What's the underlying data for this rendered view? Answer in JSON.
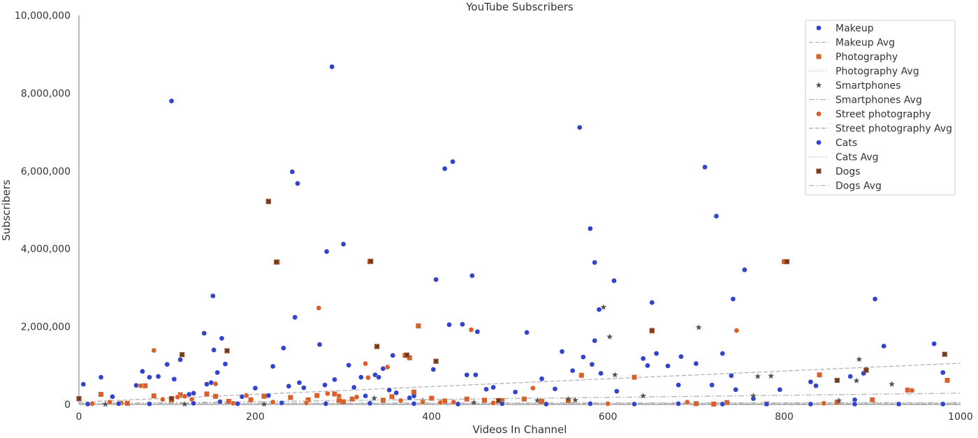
{
  "chart_data": {
    "type": "scatter",
    "title": "YouTube Subscribers",
    "xlabel": "Videos In Channel",
    "ylabel": "Subscribers",
    "xlim": [
      0,
      1000
    ],
    "ylim": [
      0,
      10000000
    ],
    "x_ticks": [
      {
        "value": 0,
        "label": "0"
      },
      {
        "value": 200,
        "label": "200"
      },
      {
        "value": 400,
        "label": "400"
      },
      {
        "value": 600,
        "label": "600"
      },
      {
        "value": 800,
        "label": "800"
      },
      {
        "value": 1000,
        "label": "1000"
      }
    ],
    "y_ticks": [
      {
        "value": 0,
        "label": "0"
      },
      {
        "value": 2000000,
        "label": "2,000,000"
      },
      {
        "value": 4000000,
        "label": "4,000,000"
      },
      {
        "value": 6000000,
        "label": "6,000,000"
      },
      {
        "value": 8000000,
        "label": "8,000,000"
      },
      {
        "value": 10000000,
        "label": "10,000,000"
      }
    ],
    "grid": false,
    "legend_position": "top-right",
    "series": [
      {
        "name": "Makeup",
        "marker": "circle",
        "color": "#3344cc",
        "points": [
          [
            5,
            520000
          ],
          [
            25,
            700000
          ],
          [
            38,
            200000
          ],
          [
            65,
            490000
          ],
          [
            72,
            850000
          ],
          [
            80,
            700000
          ],
          [
            90,
            720000
          ],
          [
            100,
            1030000
          ],
          [
            105,
            7800000
          ],
          [
            108,
            650000
          ],
          [
            115,
            1150000
          ],
          [
            125,
            260000
          ],
          [
            130,
            290000
          ],
          [
            142,
            1830000
          ],
          [
            145,
            520000
          ],
          [
            150,
            560000
          ],
          [
            152,
            2790000
          ],
          [
            153,
            1400000
          ],
          [
            157,
            820000
          ],
          [
            160,
            70000
          ],
          [
            162,
            1700000
          ],
          [
            166,
            1040000
          ],
          [
            185,
            200000
          ],
          [
            200,
            420000
          ],
          [
            215,
            230000
          ],
          [
            220,
            980000
          ],
          [
            232,
            1450000
          ],
          [
            238,
            470000
          ],
          [
            242,
            5980000
          ],
          [
            245,
            2240000
          ],
          [
            248,
            5680000
          ],
          [
            250,
            560000
          ],
          [
            255,
            430000
          ],
          [
            273,
            1540000
          ],
          [
            279,
            500000
          ],
          [
            281,
            3930000
          ],
          [
            287,
            8680000
          ],
          [
            290,
            640000
          ],
          [
            300,
            4120000
          ],
          [
            306,
            1010000
          ],
          [
            312,
            440000
          ],
          [
            320,
            700000
          ],
          [
            325,
            220000
          ],
          [
            336,
            760000
          ],
          [
            340,
            700000
          ],
          [
            345,
            920000
          ],
          [
            352,
            370000
          ],
          [
            356,
            1260000
          ],
          [
            360,
            300000
          ],
          [
            375,
            170000
          ],
          [
            380,
            220000
          ],
          [
            402,
            900000
          ],
          [
            405,
            3210000
          ],
          [
            415,
            6060000
          ],
          [
            420,
            2050000
          ],
          [
            424,
            6240000
          ],
          [
            435,
            2060000
          ],
          [
            440,
            760000
          ],
          [
            446,
            3310000
          ],
          [
            450,
            760000
          ],
          [
            452,
            1870000
          ],
          [
            462,
            390000
          ],
          [
            470,
            440000
          ],
          [
            495,
            320000
          ],
          [
            508,
            1850000
          ],
          [
            525,
            660000
          ],
          [
            540,
            400000
          ],
          [
            548,
            1360000
          ],
          [
            560,
            870000
          ],
          [
            568,
            7120000
          ],
          [
            572,
            1220000
          ],
          [
            580,
            4520000
          ],
          [
            582,
            1030000
          ],
          [
            585,
            3650000
          ],
          [
            585,
            1640000
          ],
          [
            590,
            2440000
          ],
          [
            592,
            800000
          ],
          [
            607,
            3180000
          ],
          [
            610,
            340000
          ],
          [
            640,
            1180000
          ],
          [
            645,
            1000000
          ],
          [
            650,
            2620000
          ],
          [
            655,
            1310000
          ],
          [
            668,
            990000
          ],
          [
            680,
            500000
          ],
          [
            683,
            1230000
          ],
          [
            700,
            1050000
          ],
          [
            710,
            6100000
          ],
          [
            718,
            500000
          ],
          [
            723,
            4840000
          ],
          [
            730,
            1310000
          ],
          [
            740,
            740000
          ],
          [
            742,
            2710000
          ],
          [
            745,
            380000
          ],
          [
            755,
            3460000
          ],
          [
            765,
            150000
          ],
          [
            795,
            380000
          ],
          [
            830,
            580000
          ],
          [
            836,
            480000
          ],
          [
            875,
            720000
          ],
          [
            880,
            120000
          ],
          [
            890,
            800000
          ],
          [
            903,
            2710000
          ],
          [
            913,
            1500000
          ],
          [
            970,
            1560000
          ],
          [
            980,
            820000
          ]
        ]
      },
      {
        "name": "Photography",
        "marker": "square",
        "color": "#d9602a",
        "points": [
          [
            25,
            260000
          ],
          [
            55,
            30000
          ],
          [
            75,
            480000
          ],
          [
            85,
            220000
          ],
          [
            105,
            120000
          ],
          [
            115,
            250000
          ],
          [
            145,
            270000
          ],
          [
            155,
            210000
          ],
          [
            170,
            80000
          ],
          [
            195,
            120000
          ],
          [
            210,
            210000
          ],
          [
            215,
            5210000
          ],
          [
            225,
            3660000
          ],
          [
            240,
            180000
          ],
          [
            260,
            120000
          ],
          [
            270,
            230000
          ],
          [
            290,
            270000
          ],
          [
            295,
            110000
          ],
          [
            300,
            70000
          ],
          [
            310,
            140000
          ],
          [
            330,
            3670000
          ],
          [
            345,
            110000
          ],
          [
            355,
            200000
          ],
          [
            370,
            1260000
          ],
          [
            375,
            1200000
          ],
          [
            380,
            320000
          ],
          [
            385,
            2020000
          ],
          [
            400,
            160000
          ],
          [
            415,
            90000
          ],
          [
            440,
            140000
          ],
          [
            460,
            110000
          ],
          [
            480,
            100000
          ],
          [
            505,
            140000
          ],
          [
            525,
            80000
          ],
          [
            555,
            100000
          ],
          [
            570,
            750000
          ],
          [
            630,
            700000
          ],
          [
            650,
            1890000
          ],
          [
            700,
            20000
          ],
          [
            720,
            10000
          ],
          [
            735,
            50000
          ],
          [
            780,
            20000
          ],
          [
            800,
            3670000
          ],
          [
            840,
            760000
          ],
          [
            860,
            60000
          ],
          [
            900,
            120000
          ],
          [
            940,
            370000
          ],
          [
            985,
            620000
          ]
        ]
      },
      {
        "name": "Smartphones",
        "marker": "star",
        "color": "#555555",
        "points": [
          [
            30,
            5000
          ],
          [
            120,
            8000
          ],
          [
            210,
            10000
          ],
          [
            335,
            160000
          ],
          [
            390,
            100000
          ],
          [
            448,
            50000
          ],
          [
            520,
            100000
          ],
          [
            555,
            140000
          ],
          [
            563,
            110000
          ],
          [
            595,
            2500000
          ],
          [
            602,
            1740000
          ],
          [
            608,
            760000
          ],
          [
            640,
            220000
          ],
          [
            703,
            1980000
          ],
          [
            765,
            220000
          ],
          [
            770,
            720000
          ],
          [
            785,
            730000
          ],
          [
            862,
            100000
          ],
          [
            882,
            610000
          ],
          [
            885,
            1160000
          ],
          [
            893,
            900000
          ],
          [
            922,
            520000
          ]
        ]
      },
      {
        "name": "Street photography",
        "marker": "circle",
        "color": "#d9602a",
        "points": [
          [
            15,
            20000
          ],
          [
            35,
            60000
          ],
          [
            48,
            40000
          ],
          [
            70,
            480000
          ],
          [
            85,
            1390000
          ],
          [
            95,
            130000
          ],
          [
            112,
            190000
          ],
          [
            120,
            210000
          ],
          [
            128,
            130000
          ],
          [
            155,
            530000
          ],
          [
            175,
            30000
          ],
          [
            190,
            230000
          ],
          [
            220,
            60000
          ],
          [
            258,
            40000
          ],
          [
            272,
            2480000
          ],
          [
            282,
            280000
          ],
          [
            295,
            220000
          ],
          [
            315,
            190000
          ],
          [
            325,
            1050000
          ],
          [
            328,
            690000
          ],
          [
            350,
            960000
          ],
          [
            365,
            100000
          ],
          [
            390,
            60000
          ],
          [
            410,
            50000
          ],
          [
            425,
            60000
          ],
          [
            445,
            1920000
          ],
          [
            470,
            40000
          ],
          [
            515,
            420000
          ],
          [
            600,
            20000
          ],
          [
            690,
            60000
          ],
          [
            746,
            1900000
          ],
          [
            845,
            30000
          ],
          [
            945,
            360000
          ]
        ]
      },
      {
        "name": "Cats",
        "marker": "circle",
        "color": "#3344cc",
        "points": [
          [
            10,
            10000
          ],
          [
            45,
            20000
          ],
          [
            80,
            15000
          ],
          [
            130,
            30000
          ],
          [
            180,
            20000
          ],
          [
            230,
            40000
          ],
          [
            280,
            20000
          ],
          [
            330,
            30000
          ],
          [
            380,
            20000
          ],
          [
            430,
            10000
          ],
          [
            480,
            20000
          ],
          [
            530,
            10000
          ],
          [
            580,
            20000
          ],
          [
            630,
            10000
          ],
          [
            680,
            20000
          ],
          [
            730,
            10000
          ],
          [
            780,
            10000
          ],
          [
            830,
            10000
          ],
          [
            880,
            10000
          ],
          [
            930,
            10000
          ],
          [
            980,
            10000
          ]
        ]
      },
      {
        "name": "Dogs",
        "marker": "square-x",
        "color": "#a0522d",
        "points": [
          [
            0,
            150000
          ],
          [
            105,
            150000
          ],
          [
            117,
            1280000
          ],
          [
            168,
            1380000
          ],
          [
            215,
            5220000
          ],
          [
            224,
            3660000
          ],
          [
            331,
            3680000
          ],
          [
            338,
            1490000
          ],
          [
            372,
            1270000
          ],
          [
            405,
            1110000
          ],
          [
            476,
            100000
          ],
          [
            650,
            1900000
          ],
          [
            803,
            3670000
          ],
          [
            860,
            620000
          ],
          [
            893,
            880000
          ],
          [
            982,
            1290000
          ]
        ]
      }
    ],
    "averages": [
      {
        "name": "Makeup Avg",
        "style": "dashed",
        "color": "#b3b3b3",
        "x": [
          0,
          1000
        ],
        "y": [
          60000,
          1060000
        ]
      },
      {
        "name": "Photography Avg",
        "style": "dotted",
        "color": "#c0c0c0",
        "x": [
          0,
          1000
        ],
        "y": [
          10000,
          40000
        ]
      },
      {
        "name": "Smartphones Avg",
        "style": "dashdot",
        "color": "#b3b3b3",
        "x": [
          0,
          1000
        ],
        "y": [
          20000,
          290000
        ]
      },
      {
        "name": "Street photography Avg",
        "style": "dashed",
        "color": "#aaaaaa",
        "x": [
          0,
          1000
        ],
        "y": [
          10000,
          20000
        ]
      },
      {
        "name": "Cats Avg",
        "style": "dotted",
        "color": "#bbbbbb",
        "x": [
          0,
          1000
        ],
        "y": [
          5000,
          8000
        ]
      },
      {
        "name": "Dogs Avg",
        "style": "dashdot",
        "color": "#b8b8b8",
        "x": [
          0,
          1000
        ],
        "y": [
          30000,
          50000
        ]
      }
    ],
    "legend": [
      {
        "label": "Makeup",
        "kind": "marker",
        "marker": "circle",
        "color": "#3344cc"
      },
      {
        "label": "Makeup Avg",
        "kind": "line",
        "style": "dashed",
        "color": "#b3b3b3"
      },
      {
        "label": "Photography",
        "kind": "marker",
        "marker": "square",
        "color": "#d9602a"
      },
      {
        "label": "Photography Avg",
        "kind": "line",
        "style": "dotted",
        "color": "#c0c0c0"
      },
      {
        "label": "Smartphones",
        "kind": "marker",
        "marker": "star",
        "color": "#555555"
      },
      {
        "label": "Smartphones Avg",
        "kind": "line",
        "style": "dashdot",
        "color": "#b3b3b3"
      },
      {
        "label": "Street photography",
        "kind": "marker",
        "marker": "circle",
        "color": "#d9602a"
      },
      {
        "label": "Street photography Avg",
        "kind": "line",
        "style": "dashed",
        "color": "#aaaaaa"
      },
      {
        "label": "Cats",
        "kind": "marker",
        "marker": "circle",
        "color": "#3344cc"
      },
      {
        "label": "Cats Avg",
        "kind": "line",
        "style": "dotted",
        "color": "#bbbbbb"
      },
      {
        "label": "Dogs",
        "kind": "marker",
        "marker": "square-x",
        "color": "#a0522d"
      },
      {
        "label": "Dogs Avg",
        "kind": "line",
        "style": "dashdot",
        "color": "#b8b8b8"
      }
    ]
  }
}
